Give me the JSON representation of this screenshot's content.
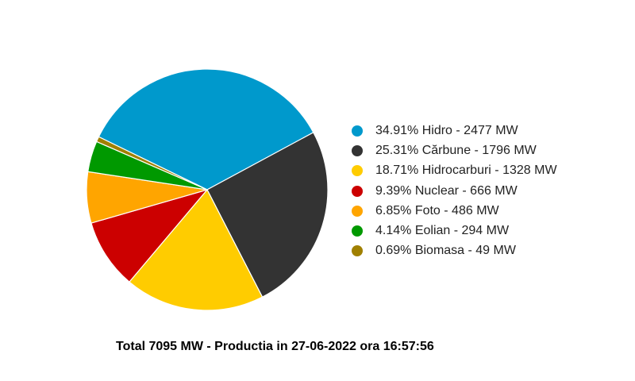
{
  "chart_data": {
    "type": "pie",
    "title": "Total 7095 MW - Productia in 27-06-2022 ora 16:57:56",
    "legend_position": "right",
    "slices": [
      {
        "label": "34.91% Hidro - 2477 MW",
        "name": "Hidro",
        "percent": 34.91,
        "value": 2477,
        "color": "#0099cc"
      },
      {
        "label": "25.31% Cărbune - 1796 MW",
        "name": "Cărbune",
        "percent": 25.31,
        "value": 1796,
        "color": "#333333"
      },
      {
        "label": "18.71% Hidrocarburi - 1328 MW",
        "name": "Hidrocarburi",
        "percent": 18.71,
        "value": 1328,
        "color": "#ffcc00"
      },
      {
        "label": "9.39% Nuclear - 666 MW",
        "name": "Nuclear",
        "percent": 9.39,
        "value": 666,
        "color": "#cc0000"
      },
      {
        "label": "6.85% Foto - 486 MW",
        "name": "Foto",
        "percent": 6.85,
        "value": 486,
        "color": "#ffa500"
      },
      {
        "label": "4.14% Eolian - 294 MW",
        "name": "Eolian",
        "percent": 4.14,
        "value": 294,
        "color": "#009900"
      },
      {
        "label": "0.69% Biomasa - 49 MW",
        "name": "Biomasa",
        "percent": 0.69,
        "value": 49,
        "color": "#a08000"
      }
    ]
  }
}
